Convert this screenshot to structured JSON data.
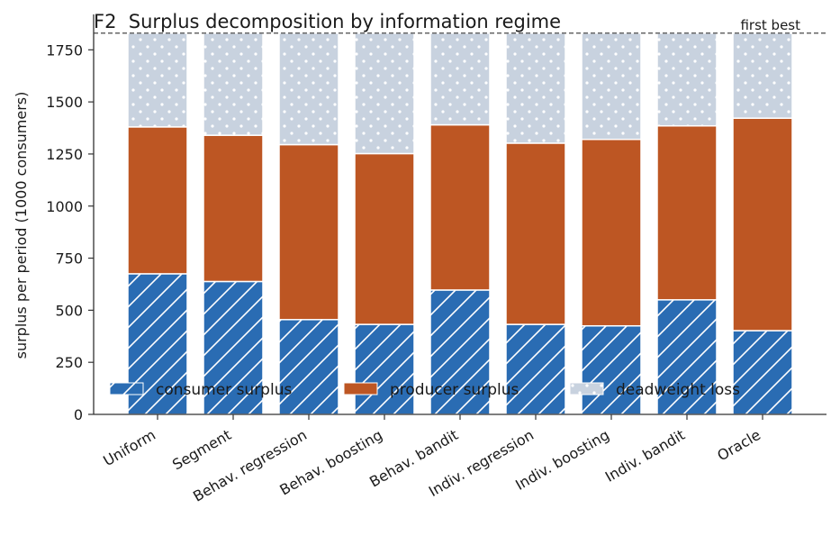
{
  "chart_data": {
    "type": "bar",
    "stacked": true,
    "title": "F2  Surplus decomposition by information regime",
    "xlabel": "",
    "ylabel": "surplus per period (1000 consumers)",
    "ylim": [
      0,
      1920
    ],
    "yticks": [
      0,
      250,
      500,
      750,
      1000,
      1250,
      1500,
      1750
    ],
    "categories": [
      "Uniform",
      "Segment",
      "Behav. regression",
      "Behav. boosting",
      "Behav. bandit",
      "Indiv. regression",
      "Indiv. boosting",
      "Indiv. bandit",
      "Oracle"
    ],
    "series": [
      {
        "name": "consumer surplus",
        "color": "#2a6cb3",
        "pattern": "hatch",
        "values": [
          675,
          638,
          455,
          432,
          597,
          432,
          425,
          550,
          402
        ]
      },
      {
        "name": "producer surplus",
        "color": "#bd5623",
        "pattern": "solid",
        "values": [
          705,
          702,
          840,
          820,
          793,
          870,
          895,
          835,
          1020
        ]
      },
      {
        "name": "deadweight loss",
        "color": "#c8d2df",
        "pattern": "dots",
        "values": [
          450,
          490,
          535,
          578,
          440,
          528,
          510,
          445,
          408
        ]
      }
    ],
    "reference_line": {
      "value": 1830,
      "label": "first best",
      "style": "dashed"
    },
    "legend_placement": "bottom, inside plot",
    "grid": false
  }
}
